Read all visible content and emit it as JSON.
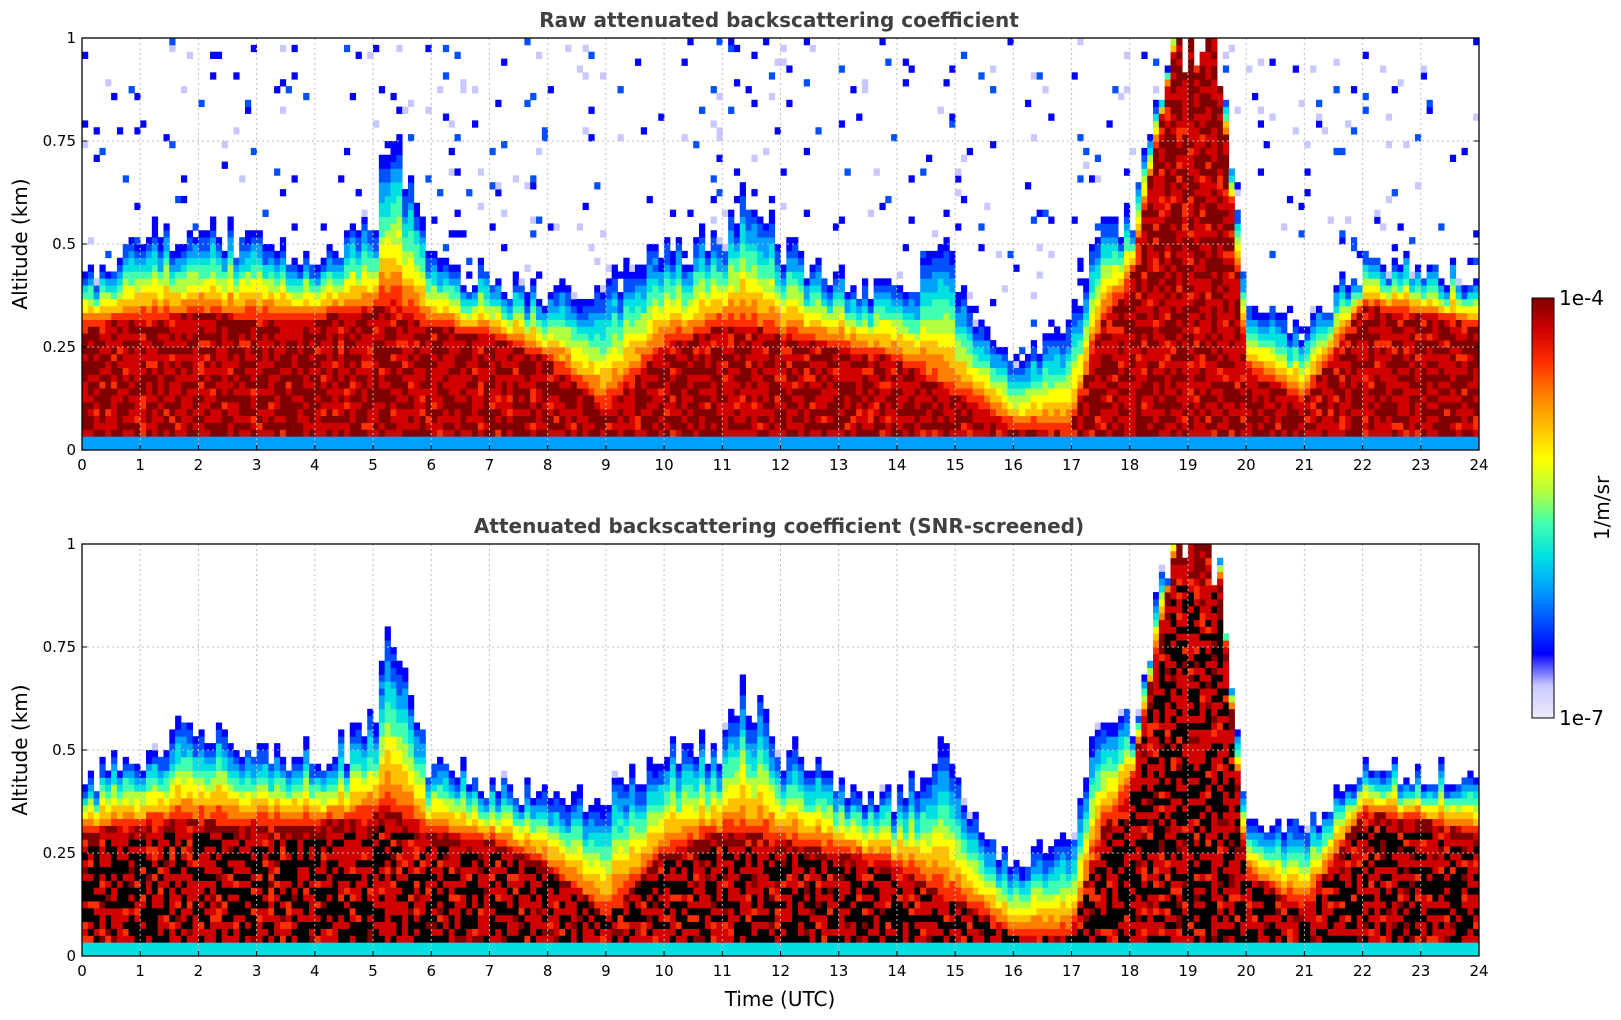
{
  "figure": {
    "colorbar": {
      "max_label": "1e-4",
      "min_label": "1e-7",
      "unit_label": "1/m/sr",
      "scale": "log",
      "range": [
        1e-07,
        0.0001
      ],
      "colormap": [
        "#ebebff",
        "#c8c8ff",
        "#0000ff",
        "#0050ff",
        "#00a0ff",
        "#00e0e0",
        "#40ffb0",
        "#b0ff40",
        "#ffff00",
        "#ffc000",
        "#ff8000",
        "#ff3000",
        "#d00000",
        "#800000"
      ]
    },
    "xlabel": "Time (UTC)"
  },
  "chart_data": [
    {
      "type": "heatmap",
      "title": "Raw attenuated backscattering coefficient",
      "xlabel": "",
      "ylabel": "Altitude (km)",
      "xlim": [
        0,
        24
      ],
      "ylim": [
        0,
        1
      ],
      "xticks": [
        "0",
        "1",
        "2",
        "3",
        "4",
        "5",
        "6",
        "7",
        "8",
        "9",
        "10",
        "11",
        "12",
        "13",
        "14",
        "15",
        "16",
        "17",
        "18",
        "19",
        "20",
        "21",
        "22",
        "23",
        "24"
      ],
      "yticks": [
        "0",
        "0.25",
        "0.5",
        "0.75",
        "1"
      ],
      "grid": true,
      "approx_profile": {
        "time_utc": [
          0,
          1,
          2,
          3,
          4,
          5,
          5.3,
          6,
          7,
          8,
          9,
          10,
          11,
          11.4,
          12,
          13,
          14,
          14.8,
          15.5,
          16,
          17,
          17.5,
          18,
          18.8,
          19.5,
          20,
          21,
          22,
          23,
          24
        ],
        "layer_top_km": [
          0.42,
          0.5,
          0.55,
          0.5,
          0.48,
          0.55,
          0.8,
          0.45,
          0.42,
          0.38,
          0.4,
          0.5,
          0.5,
          0.65,
          0.5,
          0.42,
          0.38,
          0.5,
          0.28,
          0.22,
          0.3,
          0.6,
          0.55,
          1.0,
          1.0,
          0.35,
          0.3,
          0.45,
          0.45,
          0.42
        ],
        "dense_top_km": [
          0.3,
          0.32,
          0.33,
          0.32,
          0.32,
          0.34,
          0.36,
          0.3,
          0.28,
          0.22,
          0.1,
          0.25,
          0.3,
          0.3,
          0.28,
          0.25,
          0.22,
          0.15,
          0.1,
          0.05,
          0.05,
          0.3,
          0.4,
          1.0,
          1.0,
          0.2,
          0.12,
          0.35,
          0.33,
          0.3
        ]
      }
    },
    {
      "type": "heatmap",
      "title": "Attenuated backscattering coefficient (SNR-screened)",
      "xlabel": "Time (UTC)",
      "ylabel": "Altitude (km)",
      "xlim": [
        0,
        24
      ],
      "ylim": [
        0,
        1
      ],
      "xticks": [
        "0",
        "1",
        "2",
        "3",
        "4",
        "5",
        "6",
        "7",
        "8",
        "9",
        "10",
        "11",
        "12",
        "13",
        "14",
        "15",
        "16",
        "17",
        "18",
        "19",
        "20",
        "21",
        "22",
        "23",
        "24"
      ],
      "yticks": [
        "0",
        "0.25",
        "0.5",
        "0.75",
        "1"
      ],
      "grid": true
    }
  ]
}
